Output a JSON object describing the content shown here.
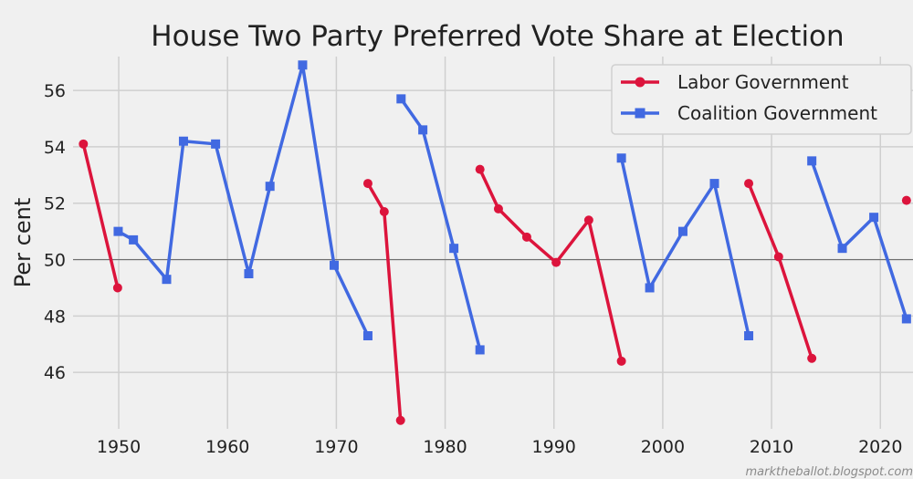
{
  "chart_data": {
    "type": "line",
    "title": "House Two Party Preferred Vote Share at Election",
    "ylabel": "Per cent",
    "xlabel": "",
    "xlim": [
      1945.8,
      2023
    ],
    "ylim": [
      44.0,
      57.2
    ],
    "xticks": [
      1950,
      1960,
      1970,
      1980,
      1990,
      2000,
      2010,
      2020
    ],
    "yticks": [
      46,
      48,
      50,
      52,
      54,
      56
    ],
    "reference_line": 50,
    "grid": true,
    "legend_position": "top-right",
    "series": [
      {
        "name": "Labor Government",
        "color": "#dc143c",
        "marker": "circle",
        "segments": [
          [
            [
              1946.75,
              54.1
            ],
            [
              1949.9,
              49.0
            ]
          ],
          [
            [
              1972.9,
              52.7
            ],
            [
              1974.4,
              51.7
            ],
            [
              1975.9,
              44.3
            ]
          ],
          [
            [
              1983.2,
              53.2
            ],
            [
              1984.9,
              51.8
            ],
            [
              1987.5,
              50.8
            ],
            [
              1990.2,
              49.9
            ],
            [
              1993.2,
              51.4
            ],
            [
              1996.2,
              46.4
            ]
          ],
          [
            [
              2007.9,
              52.7
            ],
            [
              2010.65,
              50.1
            ],
            [
              2013.7,
              46.5
            ]
          ],
          [
            [
              2022.4,
              52.1
            ]
          ]
        ]
      },
      {
        "name": "Coalition Government",
        "color": "#4169e1",
        "marker": "square",
        "segments": [
          [
            [
              1949.95,
              51.0
            ],
            [
              1951.35,
              50.7
            ],
            [
              1954.4,
              49.3
            ],
            [
              1955.95,
              54.2
            ],
            [
              1958.9,
              54.1
            ],
            [
              1961.95,
              49.5
            ],
            [
              1963.9,
              52.6
            ],
            [
              1966.9,
              56.9
            ],
            [
              1969.8,
              49.8
            ],
            [
              1972.9,
              47.3
            ]
          ],
          [
            [
              1975.95,
              55.7
            ],
            [
              1977.95,
              54.6
            ],
            [
              1980.8,
              50.4
            ],
            [
              1983.2,
              46.8
            ]
          ],
          [
            [
              1996.2,
              53.6
            ],
            [
              1998.8,
              49.0
            ],
            [
              2001.85,
              51.0
            ],
            [
              2004.75,
              52.7
            ],
            [
              2007.9,
              47.3
            ]
          ],
          [
            [
              2013.7,
              53.5
            ],
            [
              2016.5,
              50.4
            ],
            [
              2019.4,
              51.5
            ],
            [
              2022.4,
              47.9
            ]
          ]
        ]
      }
    ]
  },
  "watermark": "marktheballot.blogspot.com"
}
